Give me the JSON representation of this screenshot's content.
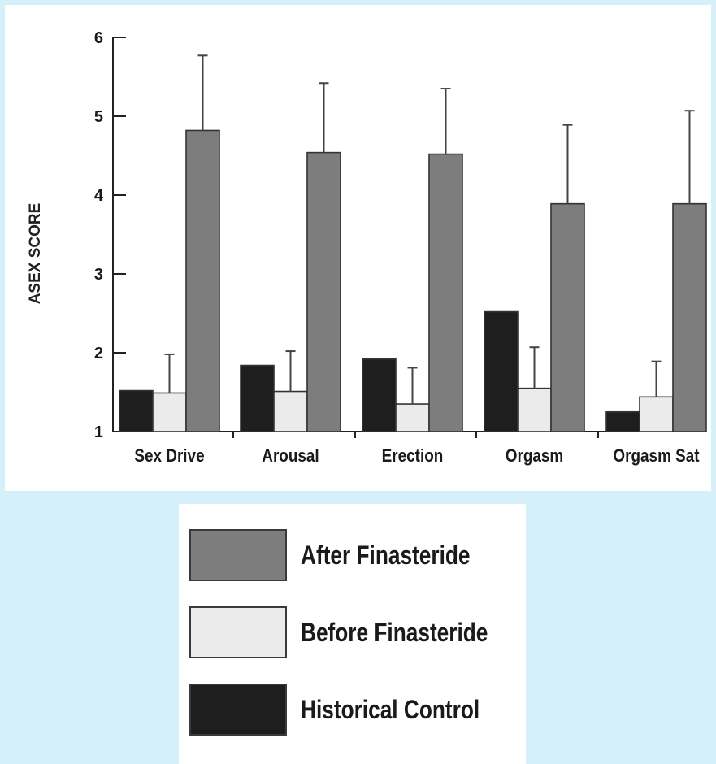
{
  "chart_data": {
    "type": "bar",
    "title": "",
    "xlabel": "",
    "ylabel": "ASEX SCORE",
    "ylim": [
      1,
      6
    ],
    "yticks": [
      "1",
      "2",
      "3",
      "4",
      "5",
      "6"
    ],
    "categories": [
      "Sex Drive",
      "Arousal",
      "Erection",
      "Orgasm",
      "Orgasm Sat"
    ],
    "series": [
      {
        "name": "Historical Control",
        "color": "#1e1e1e",
        "values": [
          1.52,
          1.84,
          1.92,
          2.52,
          1.25
        ],
        "errors": [
          0,
          0,
          0,
          0,
          0
        ]
      },
      {
        "name": "Before Finasteride",
        "color": "#ebebeb",
        "values": [
          1.49,
          1.51,
          1.35,
          1.55,
          1.44
        ],
        "errors": [
          0.49,
          0.51,
          0.46,
          0.52,
          0.45
        ]
      },
      {
        "name": "After Finasteride",
        "color": "#7d7d7d",
        "values": [
          4.82,
          4.54,
          4.52,
          3.89,
          3.89
        ],
        "errors": [
          0.95,
          0.88,
          0.83,
          1.0,
          1.18
        ]
      }
    ],
    "legend": {
      "position": "bottom",
      "items": [
        {
          "label": "After Finasteride",
          "color": "#7d7d7d"
        },
        {
          "label": "Before Finasteride",
          "color": "#ebebeb"
        },
        {
          "label": "Historical Control",
          "color": "#1e1e1e"
        }
      ]
    },
    "grid": false
  }
}
